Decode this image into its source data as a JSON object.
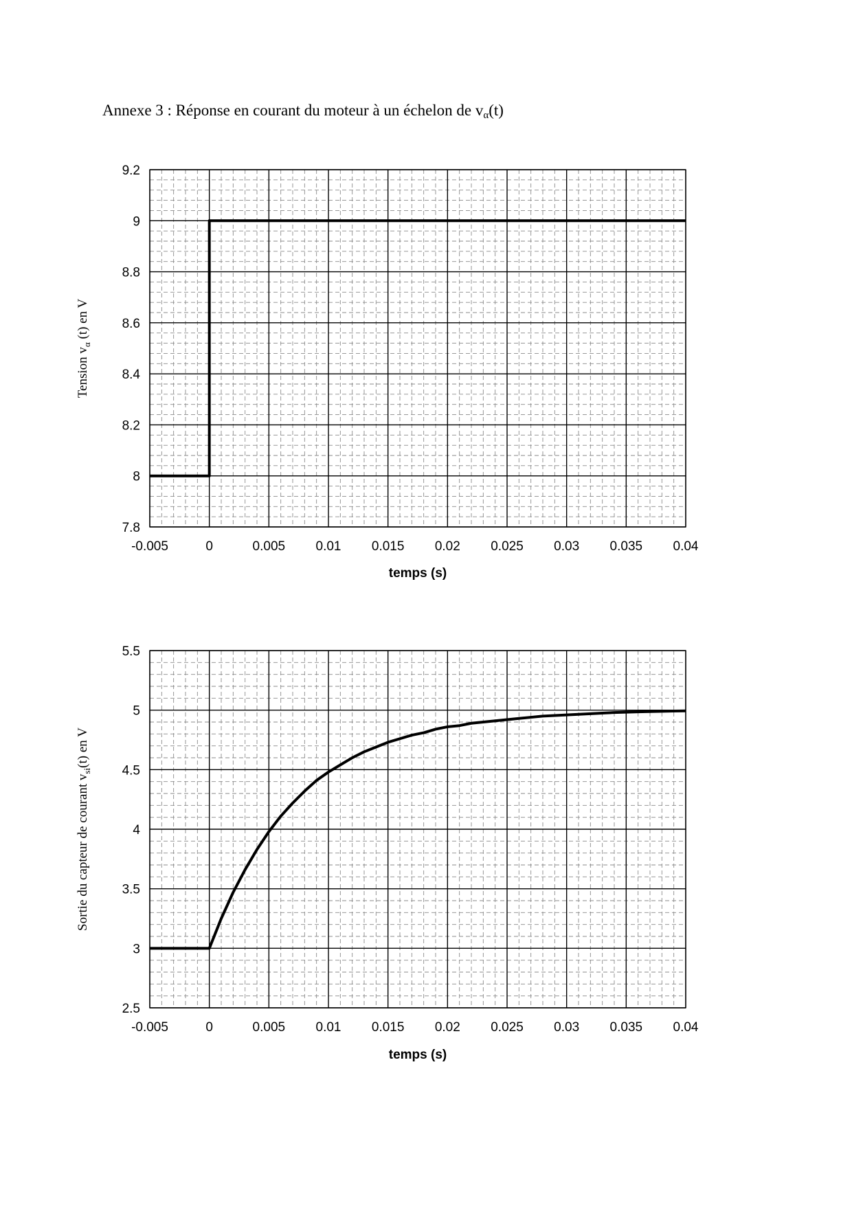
{
  "header": {
    "title_prefix": "Annexe 3 : Réponse en courant du moteur à un échelon de v",
    "title_sub": "α",
    "title_suffix": "(t)"
  },
  "chart_data": [
    {
      "type": "line",
      "title": "",
      "xlabel": "temps (s)",
      "ylabel_parts": [
        "Tension v",
        "α",
        " (t) en V"
      ],
      "xlim": [
        -0.005,
        0.04
      ],
      "ylim": [
        7.8,
        9.2
      ],
      "xticks": [
        -0.005,
        0,
        0.005,
        0.01,
        0.015,
        0.02,
        0.025,
        0.03,
        0.035,
        0.04
      ],
      "xtick_labels": [
        "-0.005",
        "0",
        "0.005",
        "0.01",
        "0.015",
        "0.02",
        "0.025",
        "0.03",
        "0.035",
        "0.04"
      ],
      "yticks": [
        7.8,
        8,
        8.2,
        8.4,
        8.6,
        8.8,
        9,
        9.2
      ],
      "ytick_labels": [
        "7.8",
        "8",
        "8.2",
        "8.4",
        "8.6",
        "8.8",
        "9",
        "9.2"
      ],
      "grid": true,
      "series": [
        {
          "x": [
            -0.005,
            0,
            0,
            0.04
          ],
          "y": [
            8,
            8,
            9,
            9
          ]
        }
      ]
    },
    {
      "type": "line",
      "title": "",
      "xlabel": "temps (s)",
      "ylabel_parts": [
        "Sortie du capteur de courant v",
        "si",
        "(t) en V"
      ],
      "xlim": [
        -0.005,
        0.04
      ],
      "ylim": [
        2.5,
        5.5
      ],
      "xticks": [
        -0.005,
        0,
        0.005,
        0.01,
        0.015,
        0.02,
        0.025,
        0.03,
        0.035,
        0.04
      ],
      "xtick_labels": [
        "-0.005",
        "0",
        "0.005",
        "0.01",
        "0.015",
        "0.02",
        "0.025",
        "0.03",
        "0.035",
        "0.04"
      ],
      "yticks": [
        2.5,
        3,
        3.5,
        4,
        4.5,
        5,
        5.5
      ],
      "ytick_labels": [
        "2.5",
        "3",
        "3.5",
        "4",
        "4.5",
        "5",
        "5.5"
      ],
      "grid": true,
      "series": [
        {
          "x": [
            -0.005,
            0,
            0.001,
            0.002,
            0.003,
            0.004,
            0.005,
            0.006,
            0.007,
            0.008,
            0.009,
            0.01,
            0.011,
            0.012,
            0.013,
            0.014,
            0.015,
            0.016,
            0.017,
            0.018,
            0.019,
            0.02,
            0.021,
            0.022,
            0.023,
            0.024,
            0.025,
            0.026,
            0.027,
            0.028,
            0.029,
            0.03,
            0.031,
            0.032,
            0.033,
            0.034,
            0.035,
            0.036,
            0.037,
            0.038,
            0.039,
            0.04
          ],
          "y": [
            3,
            3,
            3.25,
            3.47,
            3.66,
            3.83,
            3.98,
            4.11,
            4.22,
            4.32,
            4.41,
            4.48,
            4.54,
            4.6,
            4.65,
            4.69,
            4.73,
            4.76,
            4.79,
            4.81,
            4.84,
            4.86,
            4.87,
            4.89,
            4.9,
            4.91,
            4.92,
            4.93,
            4.94,
            4.95,
            4.955,
            4.96,
            4.965,
            4.97,
            4.975,
            4.98,
            4.983,
            4.986,
            4.988,
            4.99,
            4.992,
            4.994
          ]
        }
      ]
    }
  ]
}
